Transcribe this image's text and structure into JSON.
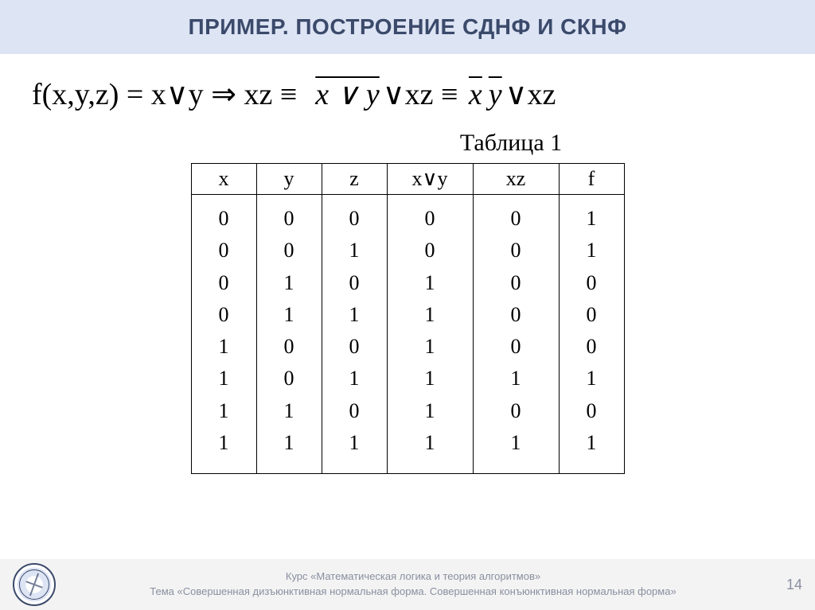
{
  "header": {
    "title": "ПРИМЕР. ПОСТРОЕНИЕ СДНФ И СКНФ"
  },
  "formula": {
    "lhs": "f(x,y,z) = x∨y ⇒ xz",
    "equiv": "≡",
    "mid_over": "x ∨ y",
    "mid_tail": "∨xz",
    "rhs_xbar": "x",
    "rhs_ybar": "y",
    "rhs_tail": "∨xz"
  },
  "table": {
    "caption": "Таблица 1",
    "columns": [
      "x",
      "y",
      "z",
      "x∨y",
      "xz",
      "f"
    ],
    "col_widths": [
      "col-narrow",
      "col-narrow",
      "col-narrow",
      "col-wide",
      "col-wide",
      "col-narrow"
    ],
    "rows": [
      [
        "0",
        "0",
        "0",
        "0",
        "0",
        "1"
      ],
      [
        "0",
        "0",
        "1",
        "0",
        "0",
        "1"
      ],
      [
        "0",
        "1",
        "0",
        "1",
        "0",
        "0"
      ],
      [
        "0",
        "1",
        "1",
        "1",
        "0",
        "0"
      ],
      [
        "1",
        "0",
        "0",
        "1",
        "0",
        "0"
      ],
      [
        "1",
        "0",
        "1",
        "1",
        "1",
        "1"
      ],
      [
        "1",
        "1",
        "0",
        "1",
        "0",
        "0"
      ],
      [
        "1",
        "1",
        "1",
        "1",
        "1",
        "1"
      ]
    ]
  },
  "footer": {
    "line1": "Курс «Математическая логика и теория алгоритмов»",
    "line2": "Тема «Совершенная дизъюнктивная нормальная форма. Совершенная конъюнктивная нормальная форма»",
    "page": "14"
  },
  "style": {
    "header_bg": "#dde4f4",
    "header_color": "#3b4a6b",
    "footer_bg": "#f3f3f3",
    "footer_color": "#8a8fa0"
  }
}
